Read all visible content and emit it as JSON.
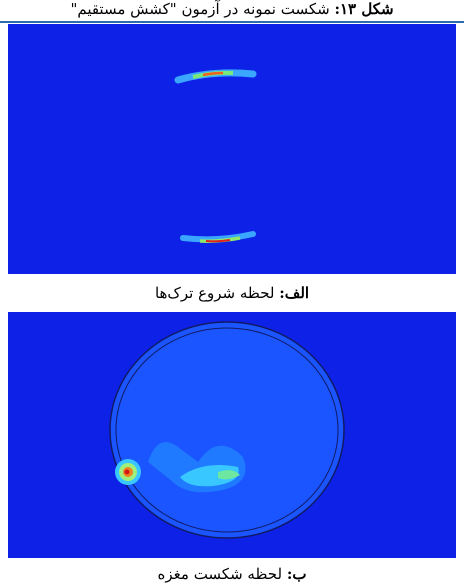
{
  "header": {
    "title": {
      "label": "شکل ۱۳:",
      "text": "شکست نمونه در آزمون \"کشش مستقیم\""
    }
  },
  "panels": [
    {
      "caption": {
        "label": "الف:",
        "text": "لحظه شروع ترک‌ها"
      }
    },
    {
      "caption": {
        "label": "ب:",
        "text": "لحظه شکست مغزه"
      }
    }
  ]
}
